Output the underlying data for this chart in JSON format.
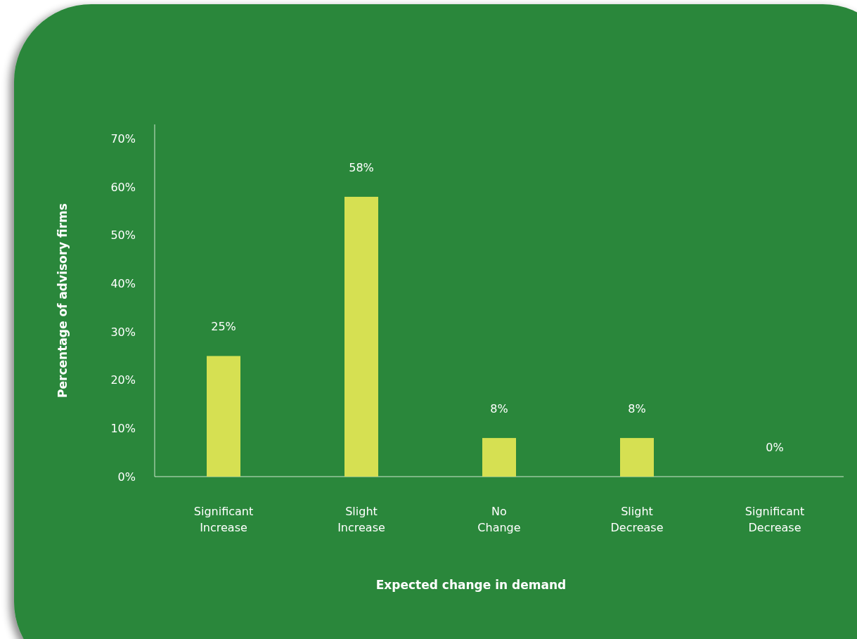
{
  "chart_data": {
    "type": "bar",
    "xlabel": "Expected change in demand",
    "ylabel": "Percentage of advisory firms",
    "categories": [
      "Significant\nIncrease",
      "Slight\nIncrease",
      "No\nChange",
      "Slight\nDecrease",
      "Significant\nDecrease"
    ],
    "values": [
      25,
      58,
      8,
      8,
      0
    ],
    "color": "#d6e052",
    "data_labels": true,
    "value_labels": [
      "25%",
      "58%",
      "8%",
      "8%",
      "0%"
    ],
    "ylim": [
      0,
      73
    ],
    "yticks": [
      {
        "value": 0,
        "label": "0%"
      },
      {
        "value": 10,
        "label": "10%"
      },
      {
        "value": 20,
        "label": "20%"
      },
      {
        "value": 30,
        "label": "30%"
      },
      {
        "value": 40,
        "label": "40%"
      },
      {
        "value": 50,
        "label": "50%"
      },
      {
        "value": 60,
        "label": "60%"
      },
      {
        "value": 70,
        "label": "70%"
      }
    ],
    "grid": false
  }
}
